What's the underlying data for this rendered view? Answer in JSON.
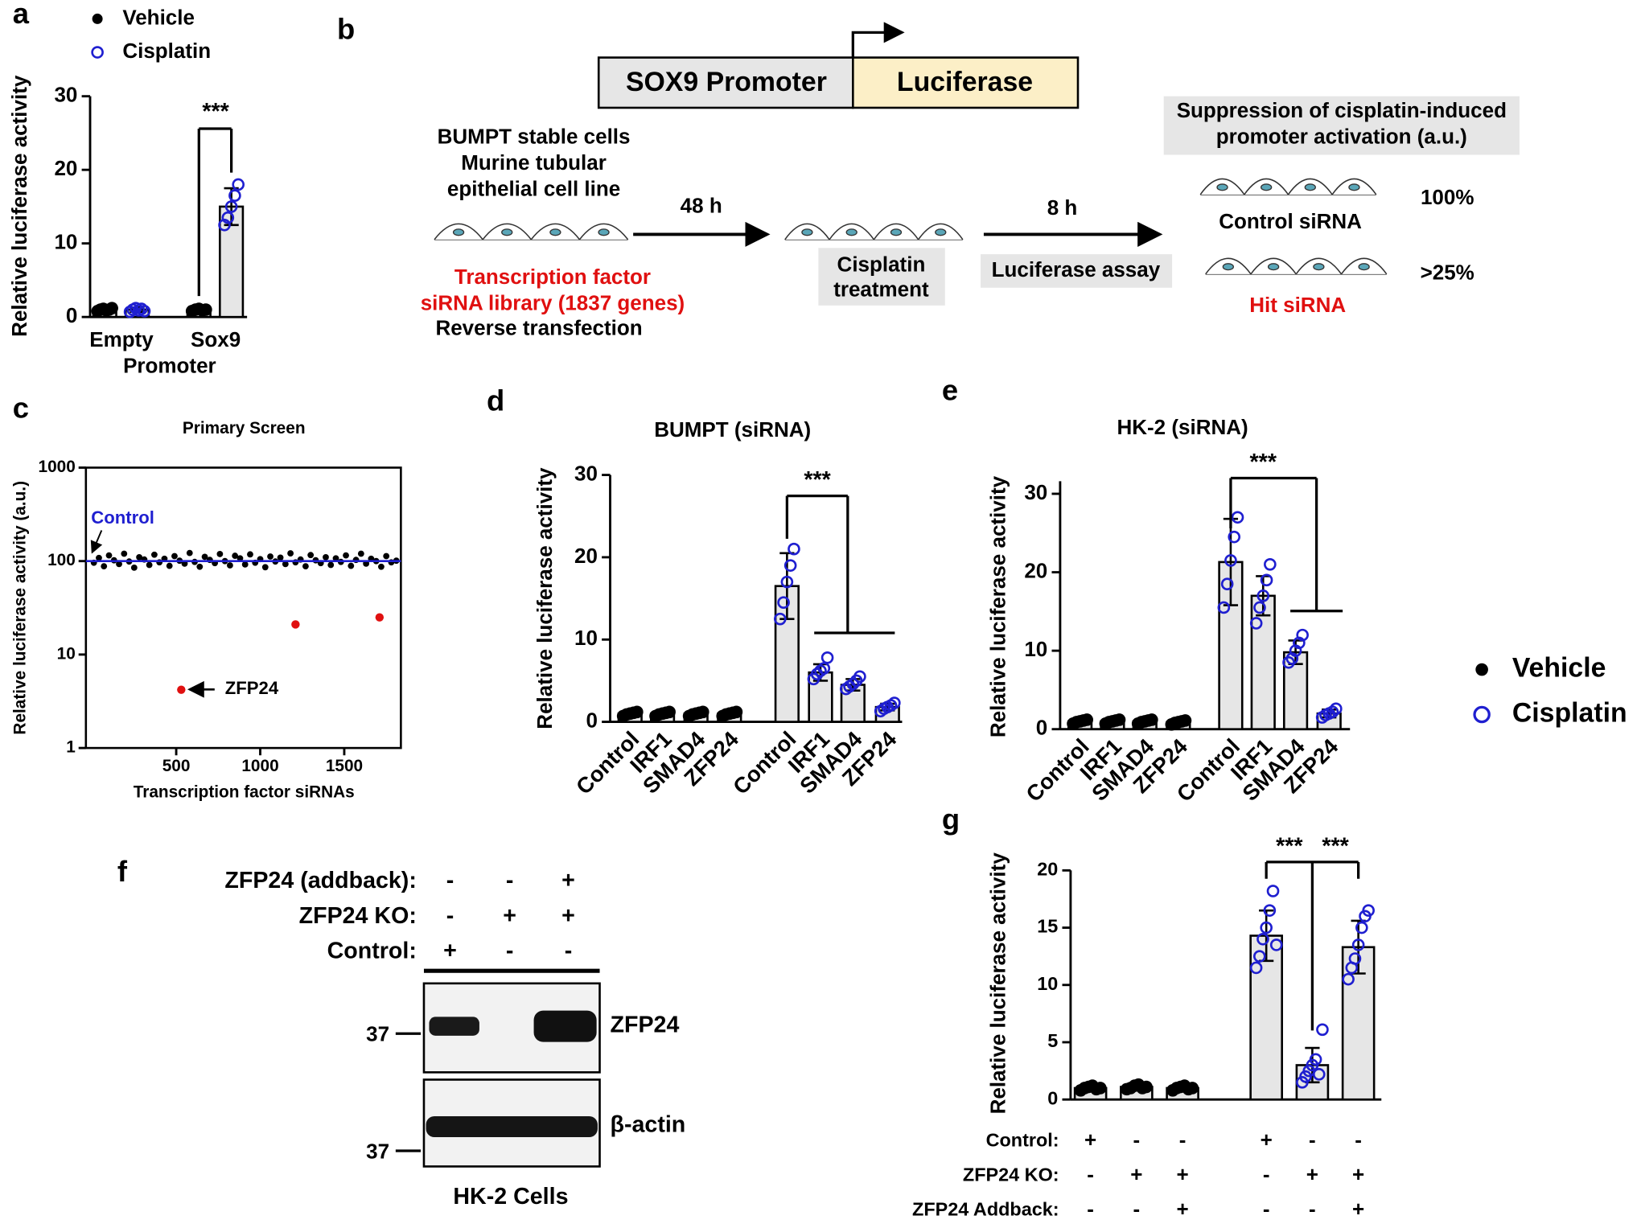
{
  "panel_labels": [
    "a",
    "b",
    "c",
    "d",
    "e",
    "f",
    "g"
  ],
  "chart_data": [
    {
      "type": "bar",
      "legend": "upper left",
      "categories": [
        "Empty",
        "Sox9"
      ],
      "xlabel": "Promoter",
      "ylabel": "Relative luciferase activity",
      "ylim": [
        0,
        30
      ],
      "yticks": [
        0,
        10,
        20,
        30
      ],
      "bar_color": "#e6e6e6",
      "annotations": [
        "***"
      ],
      "series": [
        {
          "name": "Vehicle",
          "color": "#000000",
          "marker": "filled",
          "values": [
            1,
            1
          ],
          "errors": [
            0.2,
            0.2
          ],
          "points": [
            [
              0.8,
              1,
              1.1,
              0.9,
              1,
              1.2
            ],
            [
              0.8,
              1,
              1.1,
              0.9,
              1
            ]
          ]
        },
        {
          "name": "Cisplatin",
          "color": "#1f1fd0",
          "marker": "open",
          "values": [
            1,
            15
          ],
          "errors": [
            0.3,
            2.5
          ],
          "points": [
            [
              0.7,
              1,
              1.2,
              0.9,
              1.1,
              0.8
            ],
            [
              12.5,
              13.5,
              15,
              16.5,
              18
            ]
          ]
        }
      ]
    },
    {
      "type": "scatter",
      "title": "Primary Screen",
      "xlabel": "Transcription factor siRNAs",
      "ylabel": "Relative luciferase activity (a.u.)",
      "log_y": true,
      "xlim": [
        0,
        1837
      ],
      "ylim": [
        1,
        1000
      ],
      "xticks": [
        500,
        1000,
        1500
      ],
      "yticks": [
        1,
        10,
        100,
        1000
      ],
      "reference": {
        "label": "Control",
        "value": 100,
        "color": "#1f1fd0"
      },
      "annotations": [
        "ZFP24"
      ],
      "series": [
        {
          "color": "#000000",
          "x": [
            10,
            40,
            70,
            100,
            130,
            160,
            190,
            220,
            250,
            280,
            310,
            340,
            370,
            400,
            430,
            460,
            490,
            520,
            550,
            580,
            610,
            640,
            670,
            700,
            730,
            760,
            790,
            820,
            850,
            880,
            910,
            940,
            970,
            1000,
            1030,
            1060,
            1090,
            1120,
            1150,
            1180,
            1210,
            1240,
            1270,
            1300,
            1330,
            1360,
            1390,
            1420,
            1450,
            1480,
            1510,
            1540,
            1570,
            1600,
            1630,
            1660,
            1690,
            1720,
            1750,
            1780,
            1810
          ],
          "y": [
            96,
            108,
            88,
            115,
            102,
            93,
            120,
            99,
            85,
            110,
            104,
            91,
            117,
            97,
            106,
            89,
            113,
            101,
            94,
            122,
            98,
            87,
            111,
            103,
            95,
            119,
            100,
            90,
            114,
            107,
            92,
            118,
            96,
            105,
            86,
            112,
            99,
            109,
            93,
            121,
            97,
            104,
            88,
            116,
            102,
            95,
            110,
            91,
            107,
            98,
            115,
            89,
            103,
            120,
            94,
            106,
            100,
            87,
            113,
            97,
            101
          ]
        },
        {
          "color": "#e01010",
          "x": [
            530,
            1210,
            1710
          ],
          "y": [
            4.2,
            21,
            25
          ]
        }
      ]
    },
    {
      "type": "bar",
      "title": "BUMPT (siRNA)",
      "categories": [
        "Control",
        "IRF1",
        "SMAD4",
        "ZFP24"
      ],
      "ylabel": "Relative luciferase activity",
      "ylim": [
        0,
        30
      ],
      "yticks": [
        0,
        10,
        20,
        30
      ],
      "bar_color": "#e6e6e6",
      "annotations": [
        "***"
      ],
      "series": [
        {
          "name": "Vehicle",
          "color": "#000000",
          "marker": "filled",
          "values": [
            1,
            1,
            1,
            1
          ],
          "errors": [
            0.2,
            0.2,
            0.2,
            0.2
          ],
          "points": [
            [
              0.7,
              0.9,
              1,
              1.1,
              1.2
            ],
            [
              0.7,
              0.9,
              1,
              1.1,
              1.2
            ],
            [
              0.7,
              0.9,
              1,
              1.1,
              1.2
            ],
            [
              0.7,
              0.9,
              1,
              1.1,
              1.2
            ]
          ]
        },
        {
          "name": "Cisplatin",
          "color": "#1f1fd0",
          "marker": "open",
          "values": [
            16.5,
            6,
            4.5,
            1.8
          ],
          "errors": [
            4,
            1,
            0.7,
            0.4
          ],
          "points": [
            [
              12.5,
              14.5,
              17,
              19,
              21
            ],
            [
              5.2,
              5.8,
              6.2,
              6.5,
              7.8
            ],
            [
              4,
              4.3,
              4.6,
              5,
              5.5
            ],
            [
              1.3,
              1.6,
              1.8,
              2,
              2.3
            ]
          ]
        }
      ]
    },
    {
      "type": "bar",
      "title": "HK-2 (siRNA)",
      "legend": "right",
      "categories": [
        "Control",
        "IRF1",
        "SMAD4",
        "ZFP24"
      ],
      "ylabel": "Relative luciferase activity",
      "ylim": [
        0,
        30
      ],
      "yticks": [
        0,
        10,
        20,
        30
      ],
      "bar_color": "#e6e6e6",
      "annotations": [
        "***"
      ],
      "series": [
        {
          "name": "Vehicle",
          "color": "#000000",
          "marker": "filled",
          "values": [
            1,
            1,
            1,
            0.9
          ],
          "errors": [
            0.2,
            0.2,
            0.2,
            0.2
          ],
          "points": [
            [
              0.7,
              0.9,
              1,
              1.1,
              1.2
            ],
            [
              0.7,
              0.9,
              1,
              1.1,
              1.2
            ],
            [
              0.7,
              0.9,
              1,
              1.1,
              1.2
            ],
            [
              0.6,
              0.8,
              0.9,
              1,
              1.1
            ]
          ]
        },
        {
          "name": "Cisplatin",
          "color": "#1f1fd0",
          "marker": "open",
          "values": [
            21.3,
            17,
            9.8,
            2
          ],
          "errors": [
            5.5,
            2.5,
            1.5,
            0.5
          ],
          "points": [
            [
              15.5,
              18.5,
              21.5,
              24.5,
              27
            ],
            [
              13.5,
              15.5,
              17,
              19,
              21
            ],
            [
              8.5,
              9,
              10,
              11,
              12
            ],
            [
              1.5,
              1.8,
              2,
              2.2,
              2.6
            ]
          ]
        }
      ]
    },
    {
      "type": "bar",
      "ylabel": "Relative luciferase activity",
      "ylim": [
        0,
        20
      ],
      "yticks": [
        0,
        5,
        10,
        15,
        20
      ],
      "bar_color": "#e6e6e6",
      "annotations": [
        "***",
        "***"
      ],
      "x_table": [
        {
          "label": "Control:",
          "marks": [
            "+",
            "-",
            "-",
            "+",
            "-",
            "-"
          ]
        },
        {
          "label": "ZFP24 KO:",
          "marks": [
            "-",
            "+",
            "+",
            "-",
            "+",
            "+"
          ]
        },
        {
          "label": "ZFP24 Addback:",
          "marks": [
            "-",
            "-",
            "+",
            "-",
            "-",
            "+"
          ]
        }
      ],
      "series": [
        {
          "name": "Vehicle",
          "color": "#000000",
          "marker": "filled",
          "values": [
            1,
            1.1,
            1
          ],
          "errors": [
            0.2,
            0.2,
            0.2
          ],
          "points": [
            [
              0.8,
              1,
              1.1,
              1.2,
              0.9,
              1
            ],
            [
              0.9,
              1,
              1.2,
              1.3,
              1,
              1.1
            ],
            [
              0.8,
              1,
              1.1,
              1.2,
              0.9,
              1
            ]
          ]
        },
        {
          "name": "Cisplatin",
          "color": "#1f1fd0",
          "marker": "open",
          "values": [
            14.3,
            3,
            13.3
          ],
          "errors": [
            2.2,
            1.5,
            2.3
          ],
          "points": [
            [
              11.5,
              12.5,
              14,
              15,
              16.5,
              18.2,
              13.5
            ],
            [
              1.5,
              2,
              2.5,
              3,
              3.5,
              2.2,
              6.1
            ],
            [
              10.5,
              11.5,
              12.3,
              13.5,
              15,
              16,
              16.5
            ]
          ]
        }
      ]
    }
  ],
  "diagram": {
    "promoter": "SOX9 Promoter",
    "reporter": "Luciferase",
    "cells": [
      "BUMPT stable cells",
      "Murine tubular",
      "epithelial cell line"
    ],
    "library": [
      "Transcription factor",
      "siRNA library (1837 genes)"
    ],
    "transfection": "Reverse transfection",
    "step1": "48 h",
    "treatment": [
      "Cisplatin",
      "treatment"
    ],
    "step2": "8 h",
    "assay": "Luciferase assay",
    "readout": [
      "Suppression of cisplatin-induced",
      "promoter activation (a.u.)"
    ],
    "control": "Control siRNA",
    "control_value": "100%",
    "hit": "Hit siRNA",
    "hit_value": ">25%"
  },
  "blot": {
    "rows": [
      {
        "label": "ZFP24 (addback):",
        "marks": [
          "-",
          "-",
          "+"
        ]
      },
      {
        "label": "ZFP24 KO:",
        "marks": [
          "-",
          "+",
          "+"
        ]
      },
      {
        "label": "Control:",
        "marks": [
          "+",
          "-",
          "-"
        ]
      }
    ],
    "bands": [
      "ZFP24",
      "β-actin"
    ],
    "markers": [
      "37",
      "37"
    ],
    "caption": "HK-2 Cells"
  }
}
